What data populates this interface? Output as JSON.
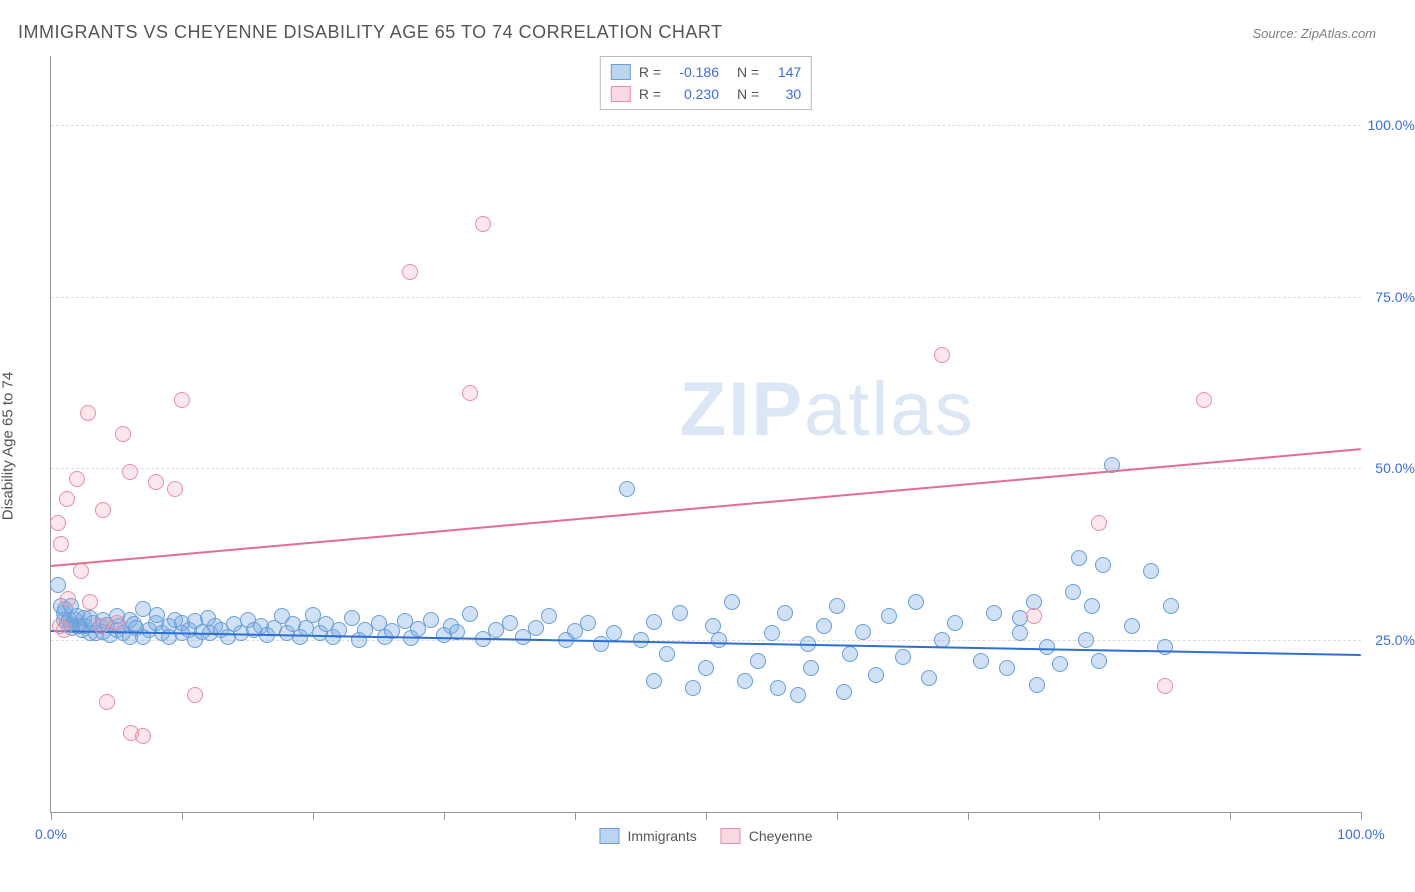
{
  "title": "IMMIGRANTS VS CHEYENNE DISABILITY AGE 65 TO 74 CORRELATION CHART",
  "source": "Source: ZipAtlas.com",
  "ylabel": "Disability Age 65 to 74",
  "watermark_bold": "ZIP",
  "watermark_rest": "atlas",
  "chart": {
    "xlim": [
      0,
      100
    ],
    "ylim": [
      0,
      110
    ],
    "yticks": [
      25,
      50,
      75,
      100
    ],
    "ytick_labels": [
      "25.0%",
      "50.0%",
      "75.0%",
      "100.0%"
    ],
    "xticks": [
      0,
      10,
      20,
      30,
      40,
      50,
      60,
      70,
      80,
      90,
      100
    ],
    "xaxis_labels": [
      {
        "x": 0,
        "text": "0.0%"
      },
      {
        "x": 100,
        "text": "100.0%"
      }
    ],
    "series": [
      {
        "name": "Immigrants",
        "label": "Immigrants",
        "point_fill": "rgba(120,170,225,0.35)",
        "point_stroke": "#6a9ed6",
        "line_color": "#2f6fd0",
        "css_class": "pt-blue",
        "swatch_class": "sw-blue",
        "R": "-0.186",
        "N": "147",
        "regression": {
          "y_at_0": 26.5,
          "y_at_100": 23.0
        },
        "points": [
          [
            0.5,
            33
          ],
          [
            0.8,
            30
          ],
          [
            1,
            29
          ],
          [
            1,
            28
          ],
          [
            1.1,
            29.5
          ],
          [
            1.2,
            27.5
          ],
          [
            1.4,
            28
          ],
          [
            1.5,
            27.2
          ],
          [
            1.5,
            30
          ],
          [
            1.6,
            26.8
          ],
          [
            1.8,
            28
          ],
          [
            2,
            27
          ],
          [
            2,
            28.5
          ],
          [
            2.2,
            27
          ],
          [
            2.4,
            26.5
          ],
          [
            2.5,
            28.2
          ],
          [
            2.6,
            27
          ],
          [
            3,
            28.3
          ],
          [
            3,
            26
          ],
          [
            3.2,
            27.5
          ],
          [
            3.4,
            26
          ],
          [
            3.8,
            27
          ],
          [
            4,
            28
          ],
          [
            4,
            26.2
          ],
          [
            4.3,
            27.2
          ],
          [
            4.5,
            25.8
          ],
          [
            5,
            26.5
          ],
          [
            5,
            28.5
          ],
          [
            5.2,
            27
          ],
          [
            5.5,
            26
          ],
          [
            6,
            28
          ],
          [
            6,
            25.5
          ],
          [
            6.3,
            27.3
          ],
          [
            6.5,
            26.8
          ],
          [
            7,
            29.5
          ],
          [
            7,
            25.5
          ],
          [
            7.5,
            26.5
          ],
          [
            8,
            27.5
          ],
          [
            8.1,
            28.7
          ],
          [
            8.5,
            26
          ],
          [
            9,
            27
          ],
          [
            9,
            25.5
          ],
          [
            9.5,
            28
          ],
          [
            10,
            26
          ],
          [
            10,
            27.5
          ],
          [
            10.5,
            26.5
          ],
          [
            11,
            27.8
          ],
          [
            11,
            25
          ],
          [
            11.5,
            26.2
          ],
          [
            12,
            28.2
          ],
          [
            12.1,
            26
          ],
          [
            12.5,
            27
          ],
          [
            13,
            26.5
          ],
          [
            13.5,
            25.5
          ],
          [
            14,
            27.3
          ],
          [
            14.5,
            26
          ],
          [
            15,
            28
          ],
          [
            15.5,
            26.5
          ],
          [
            16,
            27
          ],
          [
            16.5,
            25.8
          ],
          [
            17,
            26.7
          ],
          [
            17.6,
            28.5
          ],
          [
            18,
            26
          ],
          [
            18.5,
            27.3
          ],
          [
            19,
            25.5
          ],
          [
            19.5,
            26.8
          ],
          [
            20,
            28.7
          ],
          [
            20.5,
            26
          ],
          [
            21,
            27.3
          ],
          [
            21.5,
            25.5
          ],
          [
            22,
            26.5
          ],
          [
            23,
            28.2
          ],
          [
            23.5,
            25
          ],
          [
            24,
            26.5
          ],
          [
            25,
            27.5
          ],
          [
            25.5,
            25.5
          ],
          [
            26,
            26.3
          ],
          [
            27,
            27.8
          ],
          [
            27.5,
            25.3
          ],
          [
            28,
            26.6
          ],
          [
            29,
            28
          ],
          [
            30,
            25.8
          ],
          [
            30.5,
            27
          ],
          [
            31,
            26.2
          ],
          [
            32,
            28.8
          ],
          [
            33,
            25.2
          ],
          [
            34,
            26.5
          ],
          [
            35,
            27.5
          ],
          [
            36,
            25.5
          ],
          [
            37,
            26.7
          ],
          [
            38,
            28.5
          ],
          [
            39.3,
            25
          ],
          [
            40,
            26.3
          ],
          [
            41,
            27.5
          ],
          [
            42,
            24.5
          ],
          [
            43,
            26
          ],
          [
            44,
            47
          ],
          [
            45,
            25
          ],
          [
            46,
            19
          ],
          [
            46,
            27.6
          ],
          [
            47,
            23
          ],
          [
            48,
            29
          ],
          [
            49,
            18
          ],
          [
            50,
            21
          ],
          [
            50.5,
            27
          ],
          [
            51,
            25
          ],
          [
            52,
            30.5
          ],
          [
            53,
            19
          ],
          [
            54,
            22
          ],
          [
            55,
            26
          ],
          [
            55.5,
            18
          ],
          [
            56,
            29
          ],
          [
            57,
            17
          ],
          [
            57.8,
            24.5
          ],
          [
            58,
            21
          ],
          [
            59,
            27
          ],
          [
            60,
            30
          ],
          [
            60.5,
            17.5
          ],
          [
            61,
            23
          ],
          [
            62,
            26.2
          ],
          [
            63,
            20
          ],
          [
            64,
            28.5
          ],
          [
            65,
            22.5
          ],
          [
            66,
            30.5
          ],
          [
            67,
            19.5
          ],
          [
            68,
            25
          ],
          [
            69,
            27.5
          ],
          [
            71,
            22
          ],
          [
            72,
            29
          ],
          [
            73,
            21
          ],
          [
            74,
            26
          ],
          [
            75,
            30.5
          ],
          [
            75.3,
            18.5
          ],
          [
            76,
            24
          ],
          [
            77,
            21.5
          ],
          [
            78,
            32
          ],
          [
            78.5,
            37
          ],
          [
            79,
            25
          ],
          [
            79.5,
            30
          ],
          [
            80,
            22
          ],
          [
            80.3,
            36
          ],
          [
            81,
            50.5
          ],
          [
            82.5,
            27
          ],
          [
            84,
            35
          ],
          [
            85,
            24
          ],
          [
            85.5,
            30
          ],
          [
            74,
            28.3
          ]
        ]
      },
      {
        "name": "Cheyenne",
        "label": "Cheyenne",
        "point_fill": "rgba(240,160,180,0.25)",
        "point_stroke": "#e78fa6",
        "line_color": "#e36f8f",
        "css_class": "pt-pink",
        "swatch_class": "sw-pink",
        "R": "0.230",
        "N": "30",
        "regression": {
          "y_at_0": 36,
          "y_at_100": 53
        },
        "points": [
          [
            0.5,
            42
          ],
          [
            0.7,
            27
          ],
          [
            0.8,
            39
          ],
          [
            1,
            26.5
          ],
          [
            1.2,
            45.5
          ],
          [
            1.3,
            31
          ],
          [
            2,
            48.5
          ],
          [
            2.3,
            35
          ],
          [
            2.8,
            58
          ],
          [
            3,
            30.5
          ],
          [
            4,
            44
          ],
          [
            4.3,
            16
          ],
          [
            5,
            27.5
          ],
          [
            5.5,
            55
          ],
          [
            6,
            49.5
          ],
          [
            7,
            11
          ],
          [
            8,
            48
          ],
          [
            9.5,
            47
          ],
          [
            10,
            60
          ],
          [
            11,
            17
          ],
          [
            27.4,
            78.5
          ],
          [
            32,
            61
          ],
          [
            33,
            85.5
          ],
          [
            68,
            66.5
          ],
          [
            75,
            28.5
          ],
          [
            80,
            42
          ],
          [
            85,
            18.3
          ],
          [
            88,
            60
          ],
          [
            6.1,
            11.5
          ],
          [
            3.8,
            27
          ]
        ]
      }
    ]
  }
}
